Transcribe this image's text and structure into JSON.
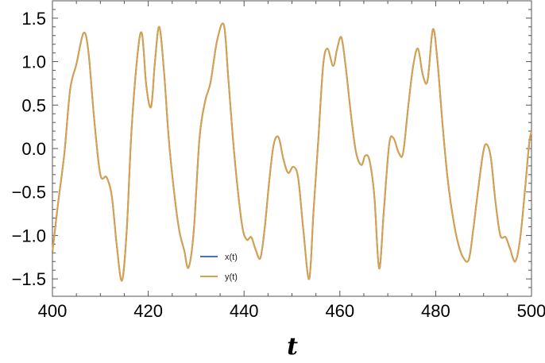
{
  "chart_data": {
    "type": "line",
    "title": "",
    "xlabel": "t",
    "ylabel": "",
    "xlim": [
      400,
      500
    ],
    "ylim": [
      -1.7,
      1.7
    ],
    "x_ticks": [
      "400",
      "420",
      "440",
      "460",
      "480",
      "500"
    ],
    "y_ticks": [
      "-1.5",
      "-1.0",
      "-0.5",
      "0.0",
      "0.5",
      "1.0",
      "1.5"
    ],
    "legend_position": "bottom-center",
    "series": [
      {
        "name": "x(t)",
        "color": "#4a6fbd",
        "x": [
          400.0,
          401.2,
          402.5,
          403.7,
          405.0,
          406.5,
          407.5,
          408.7,
          410.0,
          411.3,
          412.4,
          413.4,
          414.5,
          415.5,
          416.5,
          417.8,
          418.7,
          419.6,
          420.6,
          421.4,
          422.3,
          423.3,
          424.3,
          425.5,
          426.5,
          427.5,
          428.4,
          429.5,
          430.7,
          431.9,
          433.0,
          434.4,
          435.8,
          436.7,
          437.7,
          438.7,
          439.7,
          440.6,
          441.5,
          442.4,
          443.4,
          444.3,
          445.3,
          446.2,
          447.2,
          448.2,
          449.2,
          450.3,
          451.3,
          452.4,
          453.6,
          454.5,
          455.5,
          456.5,
          457.4,
          458.6,
          459.4,
          460.3,
          461.2,
          462.4,
          463.4,
          464.5,
          465.3,
          466.2,
          467.2,
          468.2,
          469.2,
          470.3,
          471.2,
          472.3,
          473.2,
          474.3,
          475.3,
          476.3,
          477.3,
          478.3,
          479.4,
          480.3,
          481.4,
          482.4,
          483.4,
          484.5,
          485.7,
          486.9,
          487.8,
          488.8,
          489.9,
          490.6,
          491.5,
          492.5,
          493.5,
          494.6,
          495.5,
          496.6,
          497.6,
          498.6,
          499.5,
          500.0
        ],
        "y": [
          -1.19,
          -0.62,
          -0.05,
          0.68,
          0.97,
          1.33,
          1.12,
          0.35,
          -0.3,
          -0.33,
          -0.55,
          -1.1,
          -1.52,
          -0.95,
          0.2,
          1.1,
          1.32,
          0.72,
          0.48,
          1.0,
          1.4,
          0.88,
          0.1,
          -0.55,
          -0.95,
          -1.17,
          -1.37,
          -0.95,
          0.12,
          0.55,
          0.76,
          1.25,
          1.42,
          0.82,
          0.1,
          -0.48,
          -0.92,
          -1.05,
          -1.02,
          -1.16,
          -1.26,
          -0.92,
          -0.35,
          0.05,
          0.13,
          -0.12,
          -0.28,
          -0.21,
          -0.34,
          -0.95,
          -1.5,
          -0.72,
          0.1,
          0.95,
          1.15,
          0.95,
          1.14,
          1.28,
          0.95,
          0.35,
          -0.05,
          -0.19,
          -0.08,
          -0.14,
          -0.55,
          -1.38,
          -0.7,
          0.05,
          0.12,
          -0.05,
          -0.05,
          0.5,
          0.95,
          1.15,
          0.85,
          0.78,
          1.37,
          1.05,
          0.3,
          -0.3,
          -0.72,
          -1.05,
          -1.25,
          -1.28,
          -0.95,
          -0.5,
          -0.05,
          0.05,
          -0.1,
          -0.62,
          -1.0,
          -1.02,
          -1.15,
          -1.3,
          -1.05,
          -0.5,
          0.05,
          0.2
        ]
      },
      {
        "name": "y(t)",
        "color": "#d9a24a",
        "x": [
          400.0,
          401.2,
          402.5,
          403.7,
          405.0,
          406.5,
          407.5,
          408.7,
          410.0,
          411.3,
          412.4,
          413.4,
          414.5,
          415.5,
          416.5,
          417.8,
          418.7,
          419.6,
          420.6,
          421.4,
          422.3,
          423.3,
          424.3,
          425.5,
          426.5,
          427.5,
          428.4,
          429.5,
          430.7,
          431.9,
          433.0,
          434.4,
          435.8,
          436.7,
          437.7,
          438.7,
          439.7,
          440.6,
          441.5,
          442.4,
          443.4,
          444.3,
          445.3,
          446.2,
          447.2,
          448.2,
          449.2,
          450.3,
          451.3,
          452.4,
          453.6,
          454.5,
          455.5,
          456.5,
          457.4,
          458.6,
          459.4,
          460.3,
          461.2,
          462.4,
          463.4,
          464.5,
          465.3,
          466.2,
          467.2,
          468.2,
          469.2,
          470.3,
          471.2,
          472.3,
          473.2,
          474.3,
          475.3,
          476.3,
          477.3,
          478.3,
          479.4,
          480.3,
          481.4,
          482.4,
          483.4,
          484.5,
          485.7,
          486.9,
          487.8,
          488.8,
          489.9,
          490.6,
          491.5,
          492.5,
          493.5,
          494.6,
          495.5,
          496.6,
          497.6,
          498.6,
          499.5,
          500.0
        ],
        "y": [
          -1.19,
          -0.62,
          -0.05,
          0.68,
          0.97,
          1.33,
          1.12,
          0.35,
          -0.3,
          -0.33,
          -0.55,
          -1.1,
          -1.52,
          -0.95,
          0.2,
          1.1,
          1.32,
          0.72,
          0.48,
          1.0,
          1.4,
          0.88,
          0.1,
          -0.55,
          -0.95,
          -1.17,
          -1.37,
          -0.95,
          0.12,
          0.55,
          0.76,
          1.25,
          1.42,
          0.82,
          0.1,
          -0.48,
          -0.92,
          -1.05,
          -1.02,
          -1.16,
          -1.26,
          -0.92,
          -0.35,
          0.05,
          0.13,
          -0.12,
          -0.28,
          -0.21,
          -0.34,
          -0.95,
          -1.5,
          -0.72,
          0.1,
          0.95,
          1.15,
          0.95,
          1.14,
          1.28,
          0.95,
          0.35,
          -0.05,
          -0.19,
          -0.08,
          -0.14,
          -0.55,
          -1.38,
          -0.7,
          0.05,
          0.12,
          -0.05,
          -0.05,
          0.5,
          0.95,
          1.15,
          0.85,
          0.78,
          1.37,
          1.05,
          0.3,
          -0.3,
          -0.72,
          -1.05,
          -1.25,
          -1.28,
          -0.95,
          -0.5,
          -0.05,
          0.05,
          -0.1,
          -0.62,
          -1.0,
          -1.02,
          -1.15,
          -1.3,
          -1.05,
          -0.5,
          0.05,
          0.2
        ]
      }
    ]
  }
}
